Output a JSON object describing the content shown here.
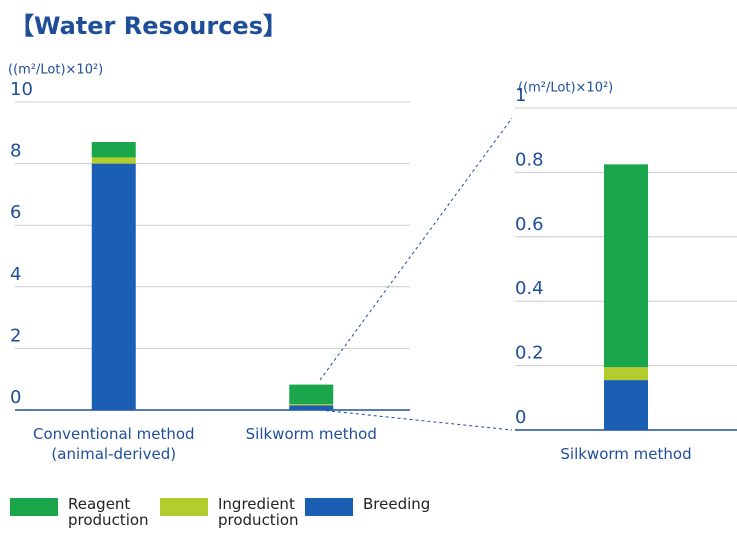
{
  "chart_data": [
    {
      "type": "bar",
      "stacked": true,
      "title": "【Water Resources】",
      "y_label": "((m²/Lot)×10²)",
      "categories": [
        "Conventional method (animal-derived)",
        "Silkworm method"
      ],
      "series": [
        {
          "name": "Reagent production",
          "color": "#1aa64a",
          "values": [
            0.5,
            0.63
          ]
        },
        {
          "name": "Ingredient production",
          "color": "#b5cc2e",
          "values": [
            0.2,
            0.04
          ]
        },
        {
          "name": "Breeding",
          "color": "#1a5fb4",
          "values": [
            8.0,
            0.155
          ]
        }
      ],
      "ylim": [
        0,
        10
      ],
      "yticks": [
        0,
        2,
        4,
        6,
        8,
        10
      ],
      "grid": true
    },
    {
      "type": "bar",
      "stacked": true,
      "y_label": "((m²/Lot)×10²)",
      "categories": [
        "Silkworm method"
      ],
      "series": [
        {
          "name": "Reagent production",
          "color": "#1aa64a",
          "values": [
            0.63
          ]
        },
        {
          "name": "Ingredient production",
          "color": "#b5cc2e",
          "values": [
            0.04
          ]
        },
        {
          "name": "Breeding",
          "color": "#1a5fb4",
          "values": [
            0.155
          ]
        }
      ],
      "ylim": [
        0,
        1
      ],
      "yticks": [
        0,
        0.2,
        0.4,
        0.6,
        0.8,
        1
      ],
      "grid": true
    }
  ]
}
